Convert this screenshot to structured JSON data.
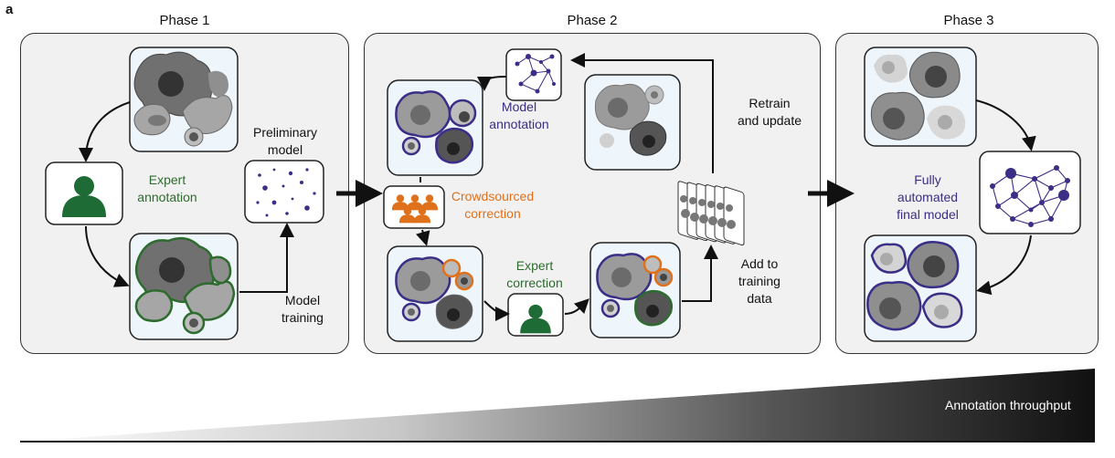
{
  "figure": {
    "panel_letter": "a"
  },
  "phase1": {
    "title": "Phase 1",
    "expert_annotation": [
      "Expert",
      "annotation"
    ],
    "preliminary_model": [
      "Preliminary",
      "model"
    ],
    "model_training": [
      "Model",
      "training"
    ]
  },
  "phase2": {
    "title": "Phase 2",
    "model_annotation": [
      "Model",
      "annotation"
    ],
    "retrain": [
      "Retrain",
      "and update"
    ],
    "crowdsourced": [
      "Crowdsourced",
      "correction"
    ],
    "expert_correction": [
      "Expert",
      "correction"
    ],
    "add_training": [
      "Add to",
      "training",
      "data"
    ]
  },
  "phase3": {
    "title": "Phase 3",
    "final_model": [
      "Fully",
      "automated",
      "final model"
    ]
  },
  "throughput": {
    "label": "Annotation throughput"
  },
  "colors": {
    "expert_green": "#2e6b2e",
    "model_purple": "#3a2e86",
    "crowd_orange": "#e0711c",
    "panel_gray": "#f1f1f1",
    "box_blue": "#eef5fb"
  }
}
